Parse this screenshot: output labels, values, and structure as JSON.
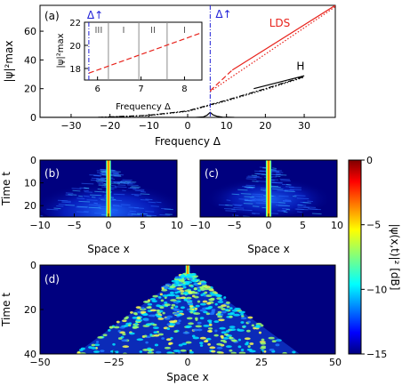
{
  "colors": {
    "lds_line": "#e8231c",
    "h_line": "#000000",
    "delta_line": "#1f1fd6",
    "inset_red": "#e8231c",
    "region_line": "#8c8c8c"
  },
  "chart_data": [
    {
      "id": "a",
      "type": "line",
      "panel_label": "(a)",
      "xlabel": "Frequency Δ",
      "ylabel": "|ψ|²max",
      "xlim": [
        -38,
        38
      ],
      "ylim": [
        0,
        78
      ],
      "xticks": [
        -30,
        -20,
        -10,
        0,
        10,
        20,
        30
      ],
      "yticks": [
        0,
        20,
        40,
        60
      ],
      "delta_marker": {
        "label": "Δ↑",
        "x": 5.8
      },
      "series": [
        {
          "name": "LDS",
          "style": "solid",
          "color": "#e8231c",
          "x": [
            11.5,
            38
          ],
          "y": [
            33,
            78
          ]
        },
        {
          "name": "LDS",
          "style": "dashed",
          "color": "#e8231c",
          "x": [
            5.8,
            11.5
          ],
          "y": [
            18.5,
            33
          ]
        },
        {
          "name": "LDS",
          "style": "dotted",
          "color": "#e8231c",
          "x": [
            5.8,
            38
          ],
          "y": [
            18,
            77
          ]
        },
        {
          "name": "H",
          "style": "solid",
          "color": "#000000",
          "x": [
            17,
            30
          ],
          "y": [
            20,
            29
          ]
        },
        {
          "name": "H",
          "style": "dashdot",
          "color": "#000000",
          "x": [
            -23,
            -10,
            0,
            10,
            20,
            30
          ],
          "y": [
            0,
            1.5,
            4.5,
            12,
            20,
            28.5
          ]
        },
        {
          "name": "H",
          "style": "dotted",
          "color": "#000000",
          "x": [
            -23,
            -10,
            0,
            10,
            20,
            30
          ],
          "y": [
            0,
            1.3,
            4.2,
            11.5,
            19.5,
            28
          ]
        },
        {
          "name": "",
          "style": "solid",
          "color": "#000000",
          "x": [
            -38,
            2,
            4,
            5,
            5.8,
            6.5,
            7.5,
            9,
            12
          ],
          "y": [
            0,
            0,
            0.3,
            1.5,
            3.5,
            1.8,
            0.8,
            0.2,
            0
          ]
        }
      ],
      "annotations": [
        {
          "text": "LDS",
          "x": 21,
          "y": 63
        },
        {
          "text": "H",
          "x": 28,
          "y": 33
        }
      ]
    },
    {
      "id": "a-inset",
      "type": "line",
      "xlabel": "Frequency Δ",
      "ylabel": "|ψ|²max",
      "xlim": [
        5.7,
        8.4
      ],
      "ylim": [
        17,
        22
      ],
      "xticks": [
        6,
        7,
        8
      ],
      "yticks": [
        18,
        20,
        22
      ],
      "delta_marker": {
        "label": "Δ↑",
        "x": 5.8
      },
      "region_boundaries": [
        6.25,
        6.95,
        7.6
      ],
      "region_labels": [
        "III",
        "I",
        "II",
        "I"
      ],
      "series": [
        {
          "name": "",
          "style": "dashed",
          "color": "#e8231c",
          "x": [
            5.8,
            8.4
          ],
          "y": [
            17.6,
            21.1
          ]
        }
      ]
    },
    {
      "id": "b",
      "type": "heatmap",
      "panel_label": "(b)",
      "xlabel": "Space x",
      "ylabel": "Time t",
      "xlim": [
        -10,
        10
      ],
      "ylim": [
        0,
        25
      ],
      "xticks": [
        -10,
        -5,
        0,
        5,
        10
      ],
      "yticks": [
        0,
        10,
        20
      ]
    },
    {
      "id": "c",
      "type": "heatmap",
      "panel_label": "(c)",
      "xlabel": "Space x",
      "xlim": [
        -10,
        10
      ],
      "ylim": [
        0,
        25
      ],
      "xticks": [
        -10,
        -5,
        0,
        5,
        10
      ]
    },
    {
      "id": "d",
      "type": "heatmap",
      "panel_label": "(d)",
      "xlabel": "Space x",
      "ylabel": "Time t",
      "xlim": [
        -50,
        50
      ],
      "ylim": [
        0,
        40
      ],
      "xticks": [
        -50,
        -25,
        0,
        25,
        50
      ],
      "yticks": [
        0,
        20,
        40
      ]
    },
    {
      "id": "colorbar",
      "type": "heatmap",
      "label": "|ψ(x,t)|² [dB]",
      "range": [
        -15,
        0
      ],
      "ticks": [
        0,
        -5,
        -10,
        -15
      ],
      "colormap": [
        "#00007f",
        "#0000ff",
        "#007fff",
        "#00ffff",
        "#7fff7f",
        "#ffff00",
        "#ff7f00",
        "#ff0000",
        "#7f0000"
      ]
    }
  ]
}
